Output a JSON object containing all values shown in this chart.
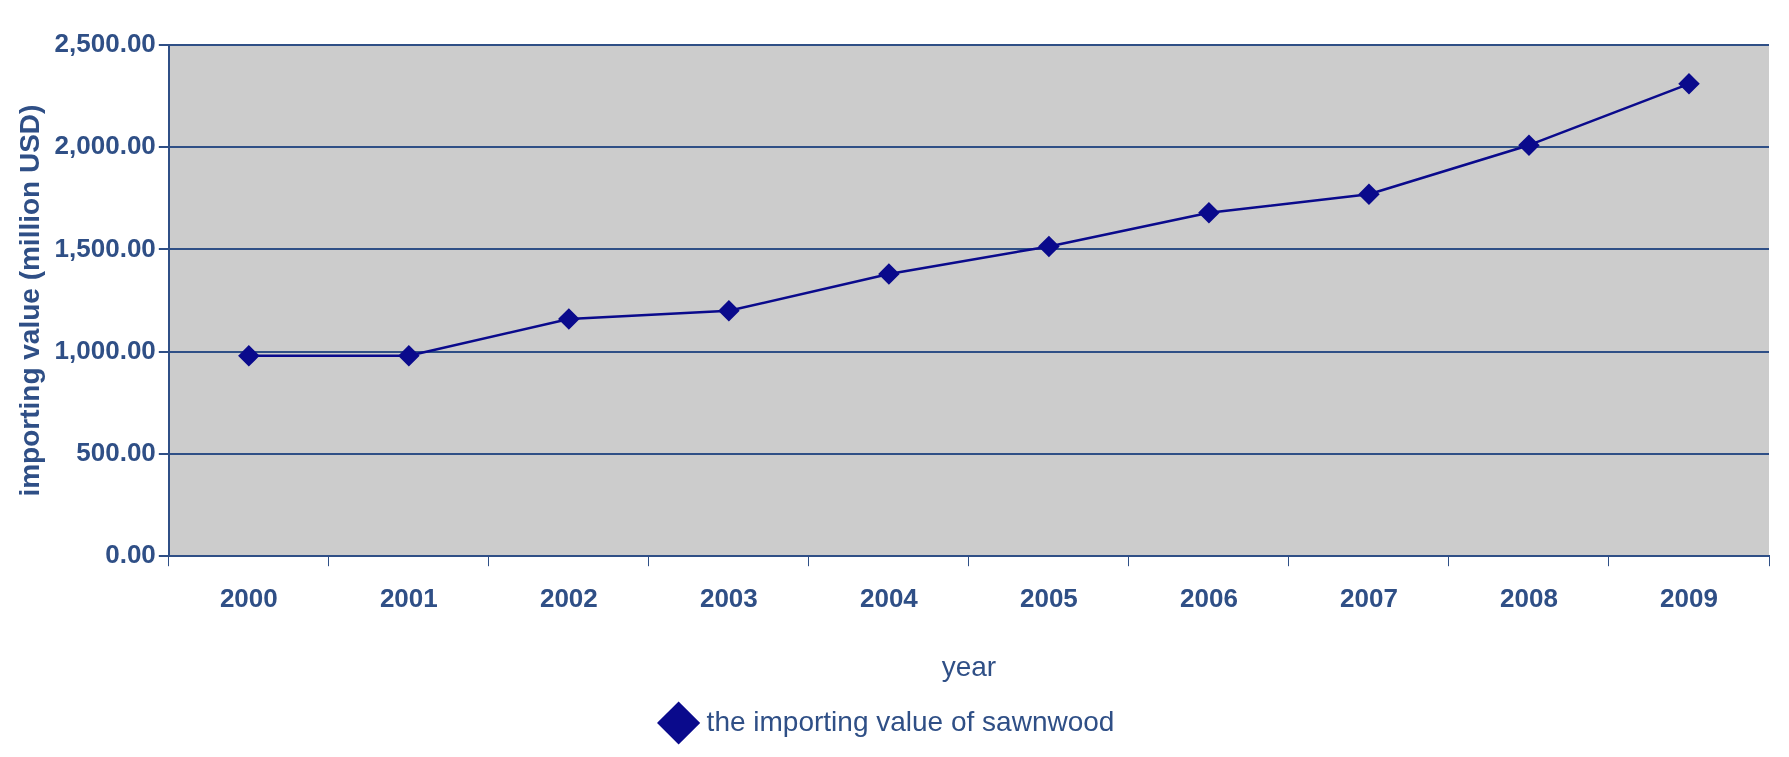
{
  "chart_data": {
    "type": "line",
    "xlabel": "year",
    "ylabel": "importing value (million USD)",
    "categories": [
      "2000",
      "2001",
      "2002",
      "2003",
      "2004",
      "2005",
      "2006",
      "2007",
      "2008",
      "2009"
    ],
    "series": [
      {
        "name": "the importing value of sawnwood",
        "color": "#0a0a8c",
        "values": [
          980,
          980,
          1160,
          1200,
          1380,
          1515,
          1680,
          1770,
          2010,
          2310
        ]
      }
    ],
    "ylim": [
      0,
      2500
    ],
    "yticks": [
      {
        "value": 0,
        "label": "0.00"
      },
      {
        "value": 500,
        "label": "500.00"
      },
      {
        "value": 1000,
        "label": "1,000.00"
      },
      {
        "value": 1500,
        "label": "1,500.00"
      },
      {
        "value": 2000,
        "label": "2,000.00"
      },
      {
        "value": 2500,
        "label": "2,500.00"
      }
    ],
    "grid": "y",
    "legend": "bottom",
    "marker": "diamond",
    "line_style": "solid"
  }
}
